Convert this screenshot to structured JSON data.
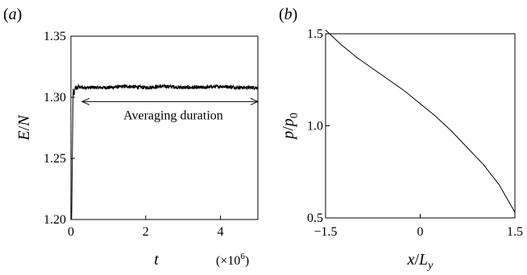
{
  "panels": {
    "a": {
      "label_open": "(",
      "label_letter": "a",
      "label_close": ")"
    },
    "b": {
      "label_open": "(",
      "label_letter": "b",
      "label_close": ")"
    }
  },
  "chart_data": [
    {
      "type": "line",
      "panel": "(a)",
      "xlabel": "t",
      "ylabel": "E/N",
      "x_multiplier": "(×10^6)",
      "xlim": [
        0,
        5
      ],
      "ylim": [
        1.2,
        1.35
      ],
      "xticks": [
        0,
        2,
        4
      ],
      "yticks": [
        1.2,
        1.25,
        1.3,
        1.35
      ],
      "ytick_labels": [
        "1.20",
        "1.25",
        "1.30",
        "1.35"
      ],
      "grid": false,
      "annotation": "Averaging duration",
      "averaging_interval": [
        0.3,
        5.0
      ],
      "series": [
        {
          "x": [
            0,
            0.02,
            0.04,
            0.06,
            0.08,
            0.1,
            0.12,
            0.14,
            0.16,
            0.18,
            0.2,
            0.25,
            0.3,
            0.5,
            1.0,
            1.5,
            2.0,
            2.5,
            3.0,
            3.5,
            4.0,
            4.5,
            5.0
          ],
          "y": [
            1.2,
            1.2,
            1.26,
            1.308,
            1.301,
            1.305,
            1.309,
            1.307,
            1.308,
            1.307,
            1.309,
            1.308,
            1.308,
            1.308,
            1.308,
            1.309,
            1.308,
            1.309,
            1.308,
            1.308,
            1.309,
            1.308,
            1.308
          ],
          "noise_amplitude": 0.0015
        }
      ]
    },
    {
      "type": "line",
      "panel": "(b)",
      "xlabel": "x/L_y",
      "ylabel": "p/p_0",
      "xlim": [
        -1.5,
        1.5
      ],
      "ylim": [
        0.5,
        1.5
      ],
      "xticks": [
        -1.5,
        0,
        1.5
      ],
      "xtick_labels": [
        "−1.5",
        "0",
        "1.5"
      ],
      "yticks": [
        0.5,
        1.0,
        1.5
      ],
      "ytick_labels": [
        "0.5",
        "1.0",
        "1.5"
      ],
      "grid": false,
      "series": [
        {
          "x": [
            -1.5,
            -1.25,
            -1.0,
            -0.75,
            -0.5,
            -0.25,
            0,
            0.25,
            0.5,
            0.75,
            1.0,
            1.25,
            1.5
          ],
          "y": [
            1.52,
            1.44,
            1.37,
            1.31,
            1.25,
            1.19,
            1.12,
            1.05,
            0.97,
            0.88,
            0.79,
            0.68,
            0.53
          ]
        }
      ]
    }
  ]
}
